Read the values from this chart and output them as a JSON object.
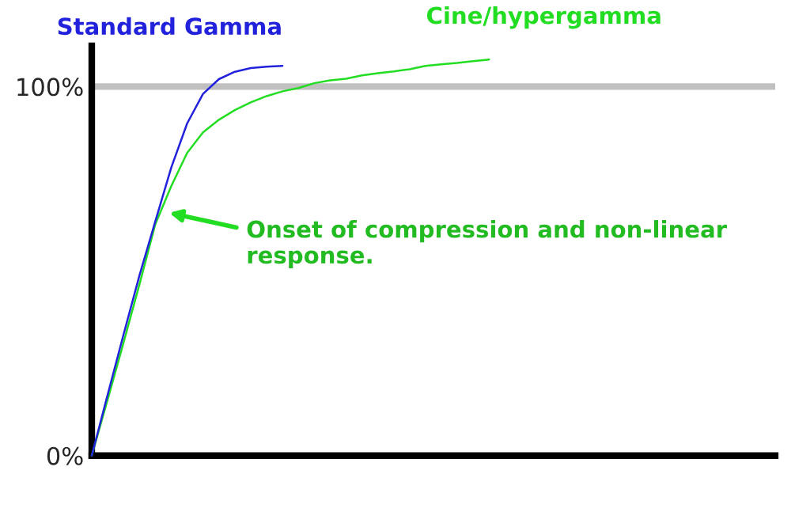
{
  "chart_data": {
    "type": "line",
    "categories": [
      null,
      null,
      null,
      null,
      null,
      null,
      null,
      null,
      null,
      null,
      null,
      null,
      null,
      null,
      null,
      null,
      null,
      null,
      null,
      null,
      null,
      null,
      null,
      null,
      null,
      null,
      null,
      null,
      null,
      null,
      null,
      null,
      null,
      null,
      null,
      null,
      null,
      null,
      null,
      null,
      null,
      null,
      null,
      null
    ],
    "series": [
      {
        "name": "Standard Gamma",
        "color": "#2222dd",
        "values": [
          0,
          16.5,
          32.8,
          48.8,
          63.5,
          78,
          90,
          98,
          102,
          104,
          105,
          105.4,
          105.6,
          null,
          null,
          null,
          null,
          null,
          null,
          null,
          null,
          null,
          null,
          null,
          null,
          null,
          null,
          null,
          null,
          null,
          null,
          null,
          null,
          null,
          null,
          null,
          null,
          null,
          null,
          null,
          null,
          null,
          null,
          null
        ]
      },
      {
        "name": "Cine/hypergamma",
        "color": "#22dd22",
        "values": [
          0,
          15.2,
          30.6,
          46.4,
          62.7,
          73,
          82,
          87.6,
          91,
          93.6,
          95.7,
          97.4,
          98.7,
          99.6,
          100.9,
          101.7,
          102.1,
          103,
          103.6,
          104.1,
          104.7,
          105.6,
          106,
          106.4,
          106.9,
          107.3,
          null,
          null,
          null,
          null,
          null,
          null,
          null,
          null,
          null,
          null,
          null,
          null,
          null,
          null,
          null,
          null,
          null,
          null
        ]
      }
    ],
    "ylim": [
      0,
      111
    ],
    "yticks": [
      {
        "value": 0,
        "label": "0%"
      },
      {
        "value": 100,
        "label": "100%"
      }
    ],
    "tick_labels": "y",
    "grid": false,
    "legend": false,
    "marker": "none",
    "line_style": "solid",
    "ref_lines": [
      {
        "axis": "y",
        "value": 100,
        "label": null,
        "color": "#c0c0c0"
      }
    ],
    "annotations": [
      "Onset of compression and non-linear\nresponse."
    ]
  }
}
